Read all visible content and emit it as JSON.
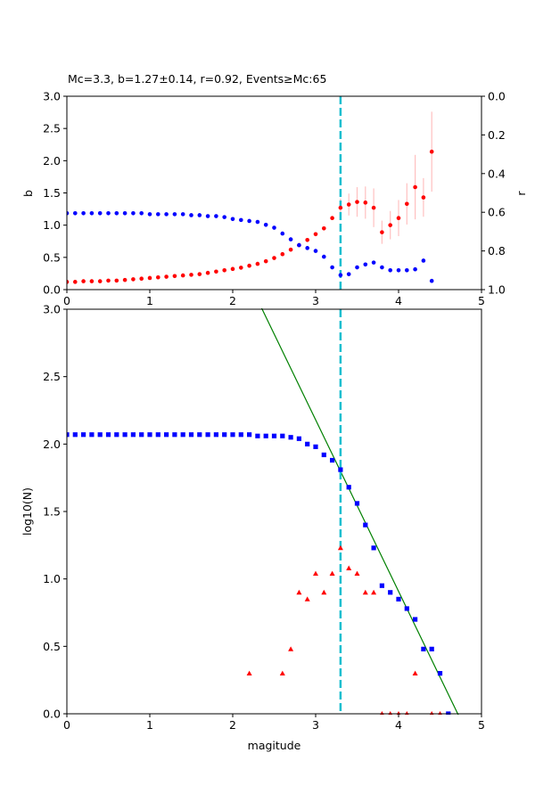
{
  "colors": {
    "b_series": "#ff0000",
    "r_series": "#0000ff",
    "errorbar": "#ffc0c0",
    "mc_line": "#17becf",
    "fit_line": "#008000",
    "cumulative": "#0000ff",
    "noncumulative": "#ff0000",
    "axes": "#000000",
    "background": "#ffffff"
  },
  "chart_data": [
    {
      "type": "scatter",
      "title": "Mc=3.3, b=1.27±0.14, r=0.92, Events≥Mc:65",
      "xlabel": "",
      "ylabel": "b",
      "ylabel_right": "r",
      "xlim": [
        0,
        5
      ],
      "ylim": [
        0,
        3
      ],
      "ylim_right": [
        1.0,
        0.0
      ],
      "x_ticks": [
        "0",
        "1",
        "2",
        "3",
        "4",
        "5"
      ],
      "y_ticks": [
        "0.0",
        "0.5",
        "1.0",
        "1.5",
        "2.0",
        "2.5",
        "3.0"
      ],
      "y_ticks_right": [
        "0.0",
        "0.2",
        "0.4",
        "0.6",
        "0.8",
        "1.0"
      ],
      "grid": false,
      "mc_line_x": 3.3,
      "series": [
        {
          "name": "b",
          "x": [
            0.0,
            0.1,
            0.2,
            0.3,
            0.4,
            0.5,
            0.6,
            0.7,
            0.8,
            0.9,
            1.0,
            1.1,
            1.2,
            1.3,
            1.4,
            1.5,
            1.6,
            1.7,
            1.8,
            1.9,
            2.0,
            2.1,
            2.2,
            2.3,
            2.4,
            2.5,
            2.6,
            2.7,
            2.8,
            2.9,
            3.0,
            3.1,
            3.2,
            3.3,
            3.4,
            3.5,
            3.6,
            3.7,
            3.8,
            3.9,
            4.0,
            4.1,
            4.2,
            4.3,
            4.4
          ],
          "y": [
            0.12,
            0.12,
            0.13,
            0.13,
            0.13,
            0.14,
            0.14,
            0.15,
            0.16,
            0.17,
            0.18,
            0.19,
            0.2,
            0.21,
            0.22,
            0.23,
            0.24,
            0.26,
            0.28,
            0.3,
            0.32,
            0.34,
            0.37,
            0.4,
            0.44,
            0.49,
            0.55,
            0.62,
            0.69,
            0.77,
            0.86,
            0.95,
            1.11,
            1.27,
            1.32,
            1.36,
            1.35,
            1.27,
            0.89,
            1.0,
            1.11,
            1.33,
            1.59,
            1.43,
            2.14
          ],
          "yerr": [
            0,
            0,
            0,
            0,
            0,
            0,
            0,
            0,
            0,
            0,
            0,
            0,
            0,
            0,
            0,
            0,
            0,
            0,
            0,
            0,
            0,
            0,
            0,
            0,
            0,
            0,
            0,
            0,
            0,
            0,
            0,
            0,
            0,
            0.14,
            0.17,
            0.23,
            0.25,
            0.3,
            0.18,
            0.22,
            0.28,
            0.32,
            0.5,
            0.3,
            0.62
          ]
        },
        {
          "name": "r",
          "x": [
            0.0,
            0.1,
            0.2,
            0.3,
            0.4,
            0.5,
            0.6,
            0.7,
            0.8,
            0.9,
            1.0,
            1.1,
            1.2,
            1.3,
            1.4,
            1.5,
            1.6,
            1.7,
            1.8,
            1.9,
            2.0,
            2.1,
            2.2,
            2.3,
            2.4,
            2.5,
            2.6,
            2.7,
            2.8,
            2.9,
            3.0,
            3.1,
            3.2,
            3.3,
            3.4,
            3.5,
            3.6,
            3.7,
            3.8,
            3.9,
            4.0,
            4.1,
            4.2,
            4.3,
            4.4
          ],
          "y": [
            0.605,
            0.605,
            0.605,
            0.605,
            0.605,
            0.605,
            0.605,
            0.605,
            0.605,
            0.605,
            0.61,
            0.61,
            0.61,
            0.61,
            0.61,
            0.615,
            0.615,
            0.62,
            0.62,
            0.625,
            0.635,
            0.64,
            0.645,
            0.65,
            0.665,
            0.68,
            0.71,
            0.74,
            0.77,
            0.785,
            0.8,
            0.83,
            0.885,
            0.925,
            0.92,
            0.885,
            0.87,
            0.86,
            0.885,
            0.9,
            0.9,
            0.9,
            0.895,
            0.85,
            0.955
          ]
        }
      ]
    },
    {
      "type": "scatter",
      "title": "",
      "xlabel": "magitude",
      "ylabel": "log10(N)",
      "xlim": [
        0,
        5
      ],
      "ylim": [
        0,
        3
      ],
      "x_ticks": [
        "0",
        "1",
        "2",
        "3",
        "4",
        "5"
      ],
      "y_ticks": [
        "0.0",
        "0.5",
        "1.0",
        "1.5",
        "2.0",
        "2.5",
        "3.0"
      ],
      "grid": false,
      "mc_line_x": 3.3,
      "fit_line": {
        "x": [
          2.3,
          4.8
        ],
        "y": [
          3.07,
          -0.11
        ]
      },
      "series": [
        {
          "name": "cumulative",
          "x": [
            0.0,
            0.1,
            0.2,
            0.3,
            0.4,
            0.5,
            0.6,
            0.7,
            0.8,
            0.9,
            1.0,
            1.1,
            1.2,
            1.3,
            1.4,
            1.5,
            1.6,
            1.7,
            1.8,
            1.9,
            2.0,
            2.1,
            2.2,
            2.3,
            2.4,
            2.5,
            2.6,
            2.7,
            2.8,
            2.9,
            3.0,
            3.1,
            3.2,
            3.3,
            3.4,
            3.5,
            3.6,
            3.7,
            3.8,
            3.9,
            4.0,
            4.1,
            4.2,
            4.3,
            4.4,
            4.5,
            4.6
          ],
          "y": [
            2.07,
            2.07,
            2.07,
            2.07,
            2.07,
            2.07,
            2.07,
            2.07,
            2.07,
            2.07,
            2.07,
            2.07,
            2.07,
            2.07,
            2.07,
            2.07,
            2.07,
            2.07,
            2.07,
            2.07,
            2.07,
            2.07,
            2.07,
            2.06,
            2.06,
            2.06,
            2.06,
            2.05,
            2.04,
            2.0,
            1.98,
            1.92,
            1.88,
            1.81,
            1.68,
            1.56,
            1.4,
            1.23,
            0.95,
            0.9,
            0.85,
            0.78,
            0.7,
            0.48,
            0.48,
            0.3,
            0.0
          ]
        },
        {
          "name": "noncumulative",
          "x": [
            2.2,
            2.6,
            2.7,
            2.8,
            2.9,
            3.0,
            3.1,
            3.2,
            3.3,
            3.4,
            3.5,
            3.6,
            3.7,
            3.8,
            3.9,
            4.0,
            4.1,
            4.2,
            4.4,
            4.5
          ],
          "y": [
            0.3,
            0.3,
            0.48,
            0.9,
            0.85,
            1.04,
            0.9,
            1.04,
            1.23,
            1.08,
            1.04,
            0.9,
            0.9,
            0.0,
            0.0,
            0.0,
            0.0,
            0.3,
            0.0,
            0.0
          ]
        }
      ]
    }
  ]
}
